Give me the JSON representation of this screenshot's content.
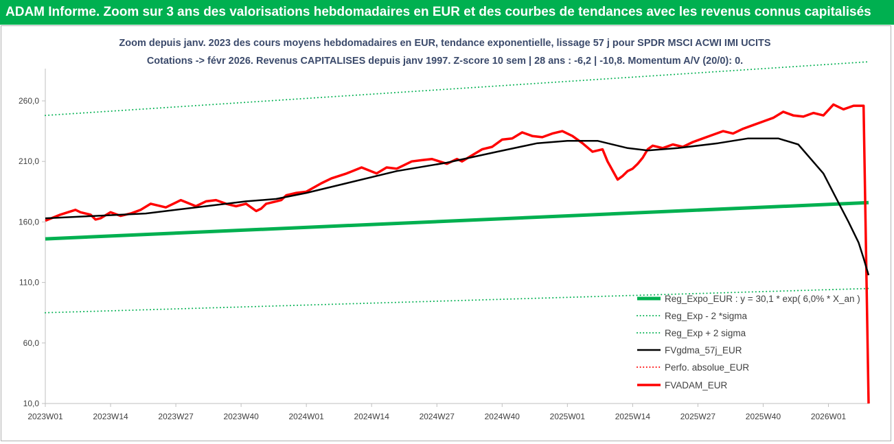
{
  "banner": {
    "title": "ADAM Informe. Zoom sur 3 ans des valorisations hebdomadaires en EUR et des courbes de tendances avec les revenus connus capitalisés"
  },
  "chart_data": {
    "type": "line",
    "title": "Zoom depuis janv. 2023 des cours moyens hebdomadaires en EUR, tendance exponentielle, lissage 57 j pour SPDR MSCI ACWI IMI UCITS",
    "subtitle": "Cotations -> févr 2026. Revenus CAPITALISES depuis janv 1997. Z-score 10 sem | 28 ans : -6,2 | -10,8. Momentum A/V (20/0): 0.",
    "xlabel": "",
    "ylabel": "",
    "grid": false,
    "legend_position": "bottom-right",
    "ylim": [
      10,
      285
    ],
    "y_ticks": [
      "260,0",
      "210,0",
      "160,0",
      "110,0",
      "60,0",
      "10,0"
    ],
    "y_tick_values": [
      260,
      210,
      160,
      110,
      60,
      10
    ],
    "x_tick_labels": [
      "2023W01",
      "2023W14",
      "2023W27",
      "2023W40",
      "2024W01",
      "2024W14",
      "2024W27",
      "2024W40",
      "2025W01",
      "2025W14",
      "2025W27",
      "2025W40",
      "2026W01"
    ],
    "x_tick_weeks": [
      0,
      13,
      26,
      39,
      52,
      65,
      78,
      91,
      104,
      117,
      130,
      143,
      156
    ],
    "week_range": [
      0,
      164
    ],
    "series": [
      {
        "name": "Reg_Expo_EUR : y = 30,1 * exp( 6,0% *  X_an )",
        "color": "#00b050",
        "style": "solid",
        "width": 5,
        "x": [
          0,
          164
        ],
        "values": [
          146,
          176
        ]
      },
      {
        "name": "Reg_Exp - 2 *sigma",
        "color": "#00b050",
        "style": "dotted",
        "width": 2,
        "x": [
          0,
          164
        ],
        "values": [
          85,
          105
        ]
      },
      {
        "name": "Reg_Exp + 2 sigma",
        "color": "#00b050",
        "style": "dotted",
        "width": 2,
        "x": [
          0,
          164
        ],
        "values": [
          248,
          295
        ]
      },
      {
        "name": "FVgdma_57j_EUR",
        "color": "#000000",
        "style": "solid",
        "width": 2.5,
        "x": [
          0,
          10,
          20,
          30,
          40,
          46,
          52,
          60,
          70,
          80,
          90,
          98,
          104,
          110,
          116,
          120,
          126,
          134,
          140,
          146,
          150,
          155,
          158,
          160,
          162,
          163,
          164
        ],
        "values": [
          163,
          165,
          167,
          172,
          177,
          179,
          184,
          192,
          202,
          209,
          218,
          225,
          227,
          227,
          221,
          219,
          221,
          225,
          229,
          229,
          224,
          200,
          176,
          160,
          143,
          130,
          116
        ]
      },
      {
        "name": "Perfo. absolue_EUR",
        "color": "#ff0000",
        "style": "dotted",
        "width": 1.5,
        "x": [],
        "values": []
      },
      {
        "name": "FVADAM_EUR",
        "color": "#ff0000",
        "style": "solid",
        "width": 3.5,
        "x": [
          0,
          3,
          6,
          7,
          9,
          10,
          11,
          13,
          15,
          17,
          19,
          21,
          24,
          27,
          30,
          32,
          34,
          36,
          38,
          40,
          42,
          43,
          44,
          46,
          47,
          48,
          50,
          52,
          55,
          57,
          60,
          63,
          66,
          68,
          70,
          73,
          75,
          77,
          80,
          82,
          83,
          85,
          87,
          89,
          91,
          93,
          95,
          97,
          99,
          101,
          103,
          105,
          107,
          109,
          111,
          112,
          114,
          115,
          116,
          117,
          118,
          119,
          120,
          121,
          123,
          125,
          127,
          129,
          131,
          133,
          135,
          137,
          139,
          141,
          143,
          145,
          147,
          149,
          151,
          153,
          155,
          157,
          159,
          161,
          163,
          164
        ],
        "values": [
          161,
          166,
          170,
          168,
          166,
          162,
          163,
          168,
          165,
          167,
          170,
          175,
          172,
          178,
          173,
          177,
          178,
          175,
          173,
          175,
          169,
          171,
          175,
          177,
          178,
          182,
          184,
          185,
          192,
          196,
          200,
          205,
          200,
          205,
          204,
          210,
          211,
          212,
          208,
          212,
          210,
          215,
          220,
          222,
          228,
          229,
          234,
          231,
          230,
          233,
          235,
          231,
          225,
          218,
          220,
          210,
          195,
          198,
          202,
          204,
          208,
          213,
          220,
          223,
          221,
          224,
          222,
          226,
          229,
          232,
          235,
          233,
          237,
          240,
          243,
          246,
          251,
          248,
          247,
          250,
          248,
          257,
          253,
          256,
          256,
          10
        ]
      }
    ]
  }
}
